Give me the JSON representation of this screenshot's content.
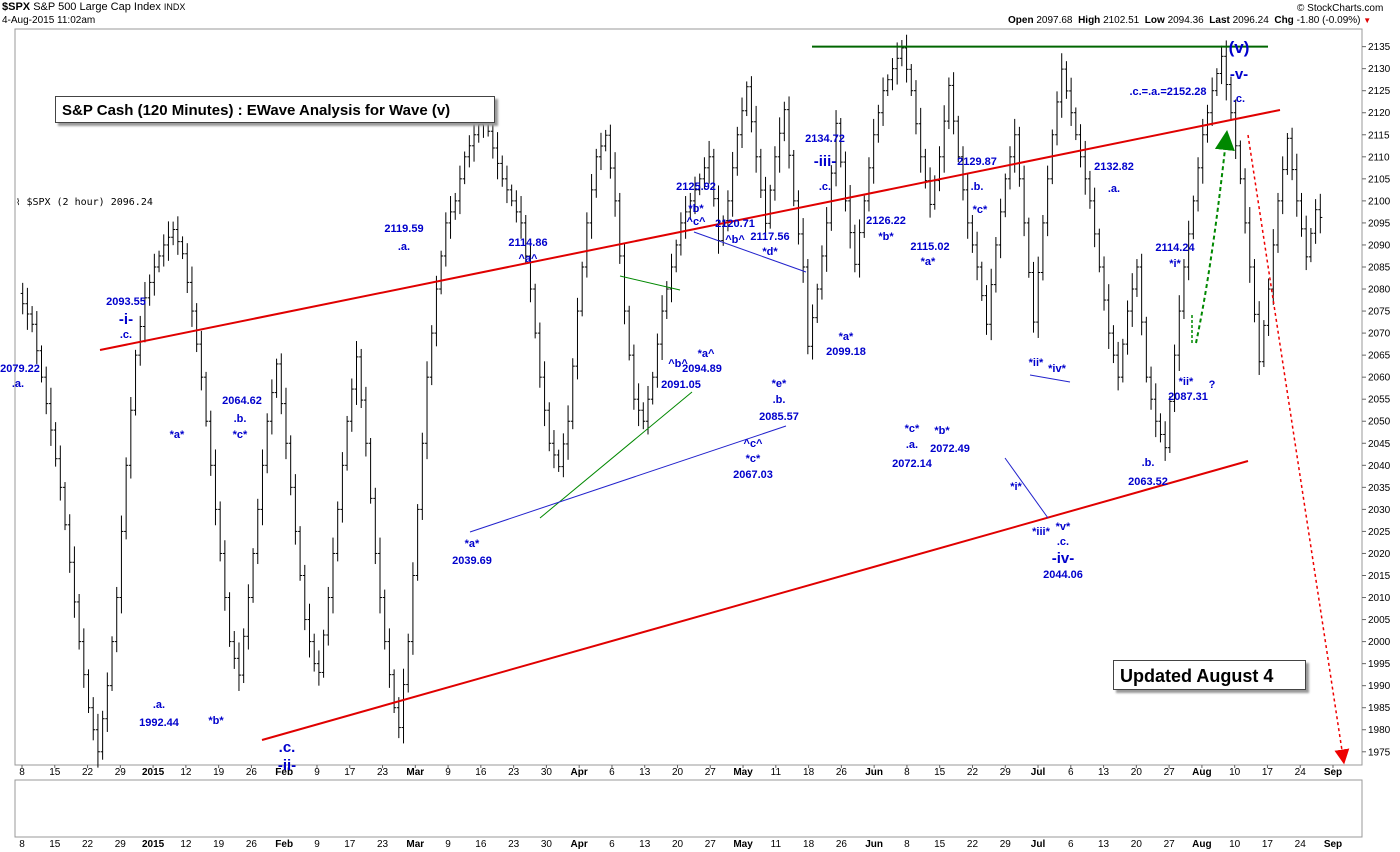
{
  "header": {
    "symbol": "$SPX",
    "name": "S&P 500 Large Cap Index",
    "exchange": "INDX",
    "datetime": "4-Aug-2015 11:02am",
    "brand": "© StockCharts.com",
    "quote": {
      "open_label": "Open",
      "open": "2097.68",
      "high_label": "High",
      "high": "2102.51",
      "low_label": "Low",
      "low": "2094.36",
      "last_label": "Last",
      "last": "2096.24",
      "chg_label": "Chg",
      "chg": "-1.80 (-0.09%)",
      "chg_arrow": "▼"
    },
    "legend": "$SPX (2 hour) 2096.24",
    "legend_icon": "chart-legend-icon"
  },
  "title_box": "S&P Cash (120 Minutes) : EWave Analysis for Wave (v)",
  "updated_box": "Updated August 4",
  "colors": {
    "price": "#000000",
    "annotation": "#0000cc",
    "channel": "#e00000",
    "resistance": "#006600",
    "triangle": "#008800",
    "trend": "#2222cc",
    "up_arrow": "#008800",
    "down_arrow": "#ee0000"
  },
  "chart_data": {
    "type": "line",
    "series": [
      {
        "values": [
          [
            0,
            2079
          ],
          [
            3,
            2072
          ],
          [
            5,
            2060
          ],
          [
            7,
            2048
          ],
          [
            9,
            2035
          ],
          [
            11,
            2018
          ],
          [
            13,
            2000
          ],
          [
            15,
            1985
          ],
          [
            17,
            1975
          ],
          [
            19,
            1990
          ],
          [
            21,
            2010
          ],
          [
            23,
            2040
          ],
          [
            25,
            2065
          ],
          [
            27,
            2078
          ],
          [
            29,
            2085
          ],
          [
            31,
            2090
          ],
          [
            33,
            2093.5
          ],
          [
            35,
            2088
          ],
          [
            37,
            2075
          ],
          [
            39,
            2060
          ],
          [
            41,
            2040
          ],
          [
            43,
            2020
          ],
          [
            45,
            2000
          ],
          [
            47,
            1992.4
          ],
          [
            49,
            2010
          ],
          [
            51,
            2030
          ],
          [
            53,
            2050
          ],
          [
            55,
            2063
          ],
          [
            57,
            2045
          ],
          [
            59,
            2025
          ],
          [
            61,
            2005
          ],
          [
            63,
            1995
          ],
          [
            64,
            1993
          ],
          [
            66,
            2010
          ],
          [
            68,
            2030
          ],
          [
            70,
            2050
          ],
          [
            72,
            2064.6
          ],
          [
            74,
            2045
          ],
          [
            76,
            2020
          ],
          [
            78,
            2000
          ],
          [
            80,
            1985
          ],
          [
            81,
            1980.5
          ],
          [
            83,
            2000
          ],
          [
            85,
            2030
          ],
          [
            87,
            2060
          ],
          [
            89,
            2080
          ],
          [
            91,
            2095
          ],
          [
            93,
            2100
          ],
          [
            95,
            2110
          ],
          [
            97,
            2115
          ],
          [
            99,
            2119.6
          ],
          [
            101,
            2112
          ],
          [
            103,
            2105
          ],
          [
            105,
            2100
          ],
          [
            107,
            2095
          ],
          [
            109,
            2080
          ],
          [
            111,
            2060
          ],
          [
            113,
            2045
          ],
          [
            115,
            2039.7
          ],
          [
            117,
            2050
          ],
          [
            119,
            2075
          ],
          [
            121,
            2095
          ],
          [
            123,
            2110
          ],
          [
            125,
            2114.9
          ],
          [
            127,
            2100
          ],
          [
            129,
            2075
          ],
          [
            131,
            2055
          ],
          [
            133,
            2050
          ],
          [
            135,
            2060
          ],
          [
            137,
            2075
          ],
          [
            139,
            2085
          ],
          [
            141,
            2095
          ],
          [
            143,
            2100
          ],
          [
            145,
            2105
          ],
          [
            147,
            2110
          ],
          [
            149,
            2091
          ],
          [
            151,
            2100
          ],
          [
            153,
            2115
          ],
          [
            155,
            2125.9
          ],
          [
            157,
            2110
          ],
          [
            159,
            2094.9
          ],
          [
            161,
            2110
          ],
          [
            163,
            2120.7
          ],
          [
            165,
            2100
          ],
          [
            167,
            2085
          ],
          [
            168,
            2067
          ],
          [
            170,
            2080
          ],
          [
            172,
            2095
          ],
          [
            174,
            2117.6
          ],
          [
            176,
            2100
          ],
          [
            178,
            2085.6
          ],
          [
            180,
            2100
          ],
          [
            182,
            2115
          ],
          [
            184,
            2125
          ],
          [
            186,
            2130
          ],
          [
            188,
            2134.7
          ],
          [
            190,
            2125
          ],
          [
            192,
            2110
          ],
          [
            194,
            2099.2
          ],
          [
            196,
            2110
          ],
          [
            198,
            2126.2
          ],
          [
            200,
            2110
          ],
          [
            202,
            2095
          ],
          [
            204,
            2085
          ],
          [
            206,
            2072
          ],
          [
            208,
            2090
          ],
          [
            210,
            2105
          ],
          [
            212,
            2115
          ],
          [
            214,
            2095
          ],
          [
            216,
            2072.5
          ],
          [
            218,
            2095
          ],
          [
            220,
            2115
          ],
          [
            222,
            2129.9
          ],
          [
            224,
            2120
          ],
          [
            226,
            2110
          ],
          [
            228,
            2100
          ],
          [
            230,
            2085
          ],
          [
            232,
            2070
          ],
          [
            234,
            2060
          ],
          [
            236,
            2075
          ],
          [
            238,
            2085
          ],
          [
            240,
            2060
          ],
          [
            242,
            2050
          ],
          [
            244,
            2044
          ],
          [
            246,
            2065
          ],
          [
            248,
            2085
          ],
          [
            250,
            2100
          ],
          [
            252,
            2115
          ],
          [
            254,
            2125
          ],
          [
            256,
            2132.8
          ],
          [
            258,
            2120
          ],
          [
            260,
            2105
          ],
          [
            262,
            2085
          ],
          [
            264,
            2063.5
          ],
          [
            266,
            2080
          ],
          [
            268,
            2100
          ],
          [
            270,
            2114.2
          ],
          [
            272,
            2100
          ],
          [
            274,
            2087.3
          ],
          [
            276,
            2098
          ],
          [
            277,
            2096.24
          ]
        ]
      }
    ],
    "xlabels": [
      "8",
      "15",
      "22",
      "29",
      "2015",
      "12",
      "19",
      "26",
      "Feb",
      "9",
      "17",
      "23",
      "Mar",
      "9",
      "16",
      "23",
      "30",
      "Apr",
      "6",
      "13",
      "20",
      "27",
      "May",
      "11",
      "18",
      "26",
      "Jun",
      "8",
      "15",
      "22",
      "29",
      "Jul",
      "6",
      "13",
      "20",
      "27",
      "Aug",
      "10",
      "17",
      "24",
      "Sep"
    ],
    "xlabel_bold": [
      "2015",
      "Feb",
      "Mar",
      "Apr",
      "May",
      "Jun",
      "Jul",
      "Aug",
      "Sep"
    ],
    "yticks": [
      1975,
      1980,
      1985,
      1990,
      1995,
      2000,
      2005,
      2010,
      2015,
      2020,
      2025,
      2030,
      2035,
      2040,
      2045,
      2050,
      2055,
      2060,
      2065,
      2070,
      2075,
      2080,
      2085,
      2090,
      2095,
      2100,
      2105,
      2110,
      2115,
      2120,
      2125,
      2130,
      2135
    ],
    "ylim": [
      1972,
      2139
    ],
    "resistance_level": 2135,
    "annotations": [
      {
        "t": "2079.22",
        "x": 20,
        "y": 372
      },
      {
        "t": ".a.",
        "x": 18,
        "y": 387
      },
      {
        "t": "2093.55",
        "x": 126,
        "y": 305
      },
      {
        "t": "-i-",
        "x": 126,
        "y": 324,
        "big": true
      },
      {
        "t": ".c.",
        "x": 126,
        "y": 338
      },
      {
        "t": "*a*",
        "x": 177,
        "y": 438
      },
      {
        "t": "2064.62",
        "x": 242,
        "y": 404
      },
      {
        "t": ".b.",
        "x": 240,
        "y": 422
      },
      {
        "t": "*c*",
        "x": 240,
        "y": 438
      },
      {
        "t": ".a.",
        "x": 159,
        "y": 708
      },
      {
        "t": "1992.44",
        "x": 159,
        "y": 726
      },
      {
        "t": "*b*",
        "x": 216,
        "y": 724
      },
      {
        "t": ".c.",
        "x": 287,
        "y": 752,
        "big": true
      },
      {
        "t": "-ii-",
        "x": 287,
        "y": 770,
        "big": true
      },
      {
        "t": "2119.59",
        "x": 404,
        "y": 232
      },
      {
        "t": ".a.",
        "x": 404,
        "y": 250
      },
      {
        "t": "2114.86",
        "x": 528,
        "y": 246
      },
      {
        "t": "^a^",
        "x": 528,
        "y": 262
      },
      {
        "t": "*a*",
        "x": 472,
        "y": 547
      },
      {
        "t": "2039.69",
        "x": 472,
        "y": 564
      },
      {
        "t": "2125.92",
        "x": 696,
        "y": 190
      },
      {
        "t": "*b*",
        "x": 696,
        "y": 212
      },
      {
        "t": "^c^",
        "x": 696,
        "y": 225
      },
      {
        "t": "2120.71",
        "x": 735,
        "y": 227
      },
      {
        "t": "^b^",
        "x": 735,
        "y": 243
      },
      {
        "t": "2117.56",
        "x": 770,
        "y": 240
      },
      {
        "t": "*d*",
        "x": 770,
        "y": 255
      },
      {
        "t": "^b^",
        "x": 678,
        "y": 367
      },
      {
        "t": "*a^",
        "x": 706,
        "y": 357
      },
      {
        "t": "2091.05",
        "x": 681,
        "y": 388
      },
      {
        "t": "2094.89",
        "x": 702,
        "y": 372
      },
      {
        "t": "*e*",
        "x": 779,
        "y": 387
      },
      {
        "t": ".b.",
        "x": 779,
        "y": 403
      },
      {
        "t": "2085.57",
        "x": 779,
        "y": 420
      },
      {
        "t": "^c^",
        "x": 753,
        "y": 447
      },
      {
        "t": "*c*",
        "x": 753,
        "y": 462
      },
      {
        "t": "2067.03",
        "x": 753,
        "y": 478
      },
      {
        "t": "2134.72",
        "x": 825,
        "y": 142
      },
      {
        "t": "-iii-",
        "x": 825,
        "y": 166,
        "big": true
      },
      {
        "t": ".c.",
        "x": 825,
        "y": 190
      },
      {
        "t": "*a*",
        "x": 846,
        "y": 340
      },
      {
        "t": "2099.18",
        "x": 846,
        "y": 355
      },
      {
        "t": "2126.22",
        "x": 886,
        "y": 224
      },
      {
        "t": "*b*",
        "x": 886,
        "y": 240
      },
      {
        "t": "2115.02",
        "x": 930,
        "y": 250
      },
      {
        "t": "*a*",
        "x": 928,
        "y": 265
      },
      {
        "t": "*c*",
        "x": 912,
        "y": 432
      },
      {
        "t": ".a.",
        "x": 912,
        "y": 448
      },
      {
        "t": "2072.14",
        "x": 912,
        "y": 467
      },
      {
        "t": "*b*",
        "x": 942,
        "y": 434
      },
      {
        "t": "2072.49",
        "x": 950,
        "y": 452
      },
      {
        "t": "2129.87",
        "x": 977,
        "y": 165
      },
      {
        "t": ".b.",
        "x": 977,
        "y": 190
      },
      {
        "t": "*c*",
        "x": 980,
        "y": 213
      },
      {
        "t": "*ii*",
        "x": 1036,
        "y": 366
      },
      {
        "t": "*iv*",
        "x": 1057,
        "y": 372
      },
      {
        "t": "*i*",
        "x": 1016,
        "y": 490
      },
      {
        "t": "*iii*",
        "x": 1041,
        "y": 535
      },
      {
        "t": "*v*",
        "x": 1063,
        "y": 530
      },
      {
        "t": ".c.",
        "x": 1063,
        "y": 545
      },
      {
        "t": "-iv-",
        "x": 1063,
        "y": 563,
        "big": true
      },
      {
        "t": "2044.06",
        "x": 1063,
        "y": 578
      },
      {
        "t": "2132.82",
        "x": 1114,
        "y": 170
      },
      {
        "t": ".a.",
        "x": 1114,
        "y": 192
      },
      {
        "t": "2114.24",
        "x": 1175,
        "y": 251
      },
      {
        "t": "*i*",
        "x": 1175,
        "y": 267
      },
      {
        "t": "*ii*",
        "x": 1186,
        "y": 385
      },
      {
        "t": "?",
        "x": 1212,
        "y": 388
      },
      {
        "t": "2087.31",
        "x": 1188,
        "y": 400
      },
      {
        "t": ".b.",
        "x": 1148,
        "y": 466
      },
      {
        "t": "2063.52",
        "x": 1148,
        "y": 485
      },
      {
        "t": ".c.=.a.=2152.28",
        "x": 1168,
        "y": 95
      },
      {
        "t": "(v)",
        "x": 1239,
        "y": 53,
        "xl": true
      },
      {
        "t": "-v-",
        "x": 1239,
        "y": 79,
        "big": true
      },
      {
        "t": ".c.",
        "x": 1239,
        "y": 102
      }
    ]
  }
}
